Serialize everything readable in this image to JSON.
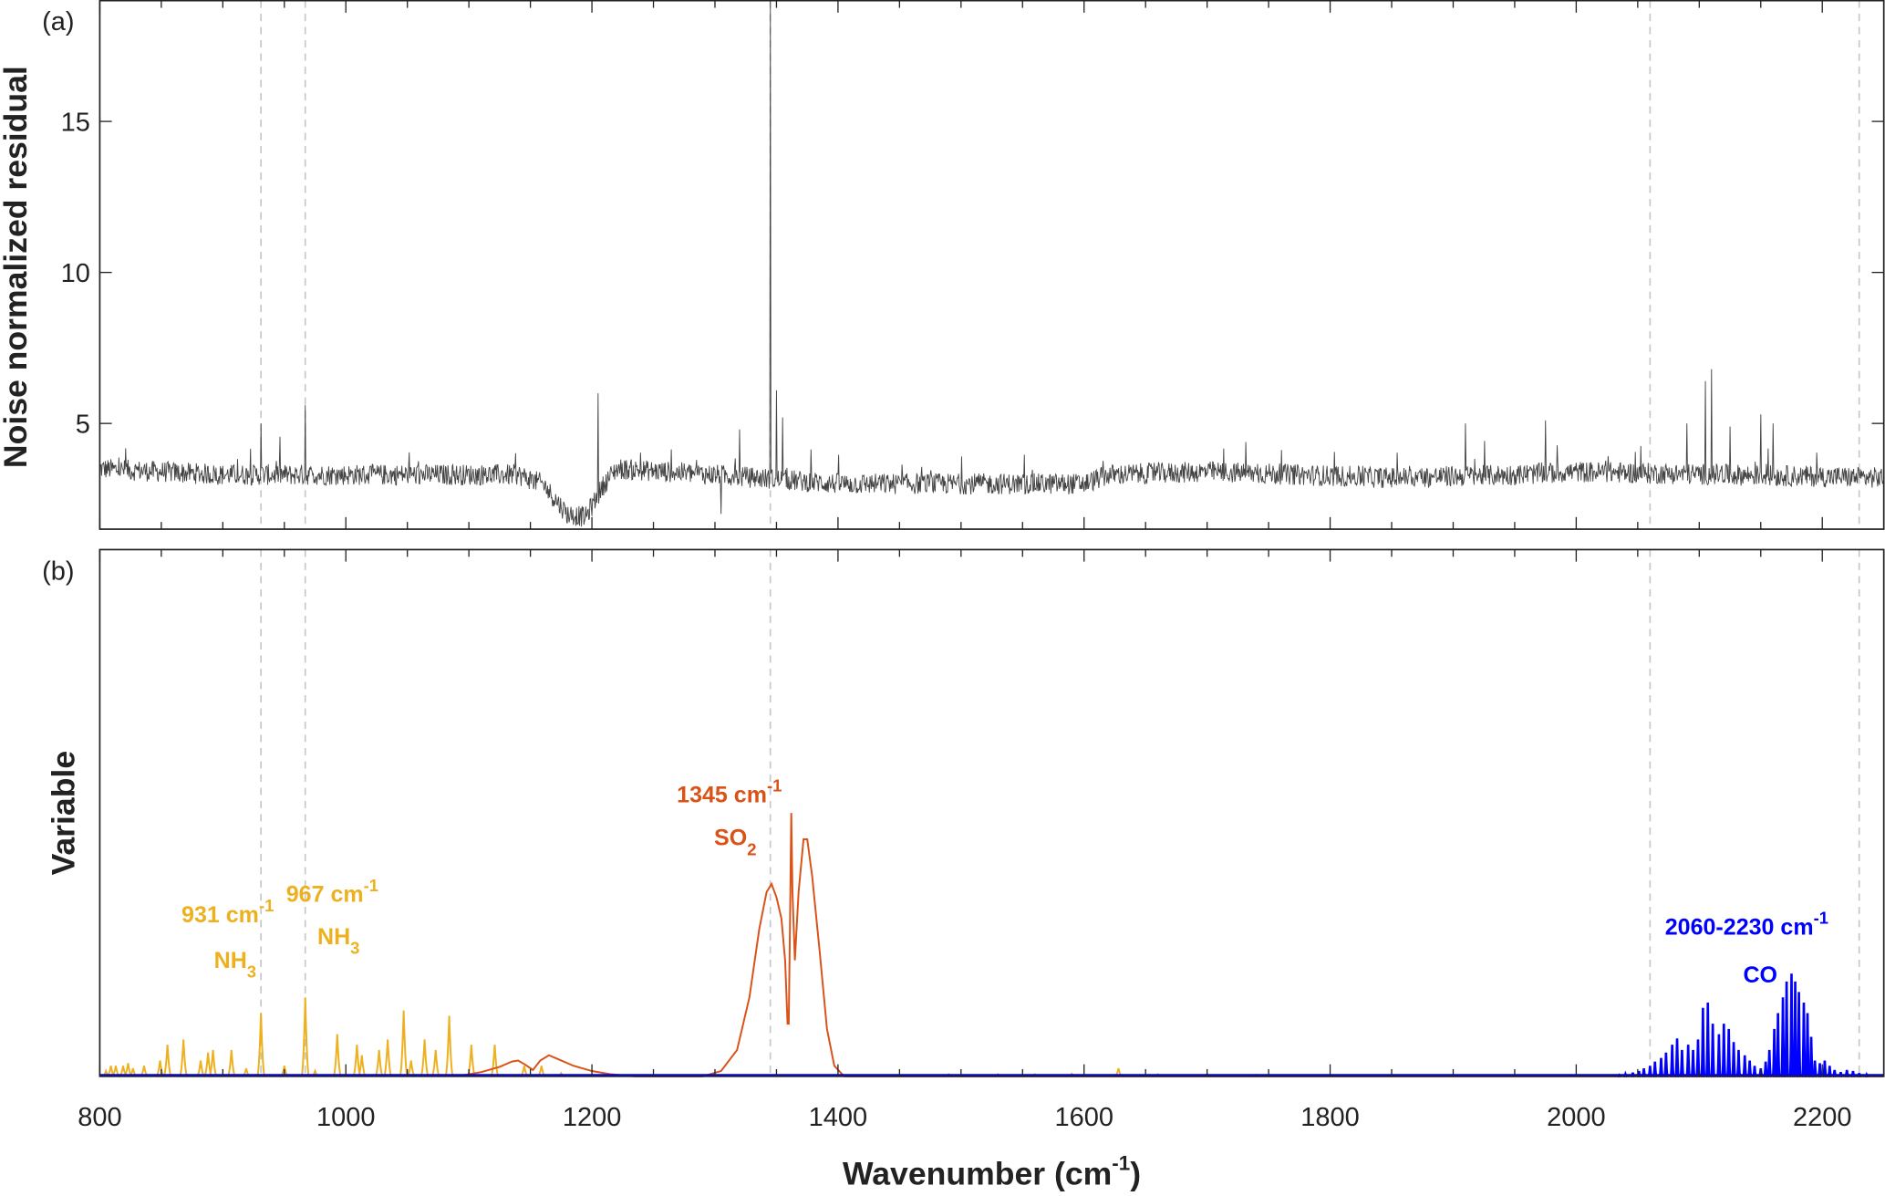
{
  "chart_data": [
    {
      "panel_label": "(a)",
      "type": "line",
      "xlabel_main": "Wavenumber (cm",
      "xlabel_sup": "-1",
      "xlabel_close": ")",
      "ylabel": "Noise normalized residual",
      "xlim": [
        800,
        2250
      ],
      "ylim": [
        1.5,
        19
      ],
      "xticks": [
        800,
        1000,
        1200,
        1400,
        1600,
        1800,
        2000,
        2200
      ],
      "yticks": [
        5,
        10,
        15
      ],
      "line_color": "#444444",
      "baseline": 3.3,
      "noise_amplitude": 0.35,
      "baseline_features": [
        [
          800,
          3.5
        ],
        [
          900,
          3.3
        ],
        [
          1140,
          3.3
        ],
        [
          1160,
          3.0
        ],
        [
          1180,
          2.0
        ],
        [
          1195,
          1.9
        ],
        [
          1210,
          3.0
        ],
        [
          1220,
          3.5
        ],
        [
          1300,
          3.3
        ],
        [
          1400,
          3.0
        ],
        [
          1600,
          3.0
        ],
        [
          1620,
          3.3
        ],
        [
          1700,
          3.4
        ],
        [
          1850,
          3.2
        ],
        [
          1950,
          3.3
        ],
        [
          2000,
          3.4
        ],
        [
          2250,
          3.2
        ]
      ],
      "spikes": [
        [
          931,
          5.0
        ],
        [
          967,
          5.6
        ],
        [
          1205,
          6.0
        ],
        [
          1305,
          2.0
        ],
        [
          1345,
          19.0
        ],
        [
          1350,
          6.1
        ],
        [
          1355,
          5.2
        ],
        [
          1320,
          4.8
        ],
        [
          1910,
          5.0
        ],
        [
          1975,
          5.1
        ],
        [
          2105,
          6.4
        ],
        [
          2110,
          6.8
        ],
        [
          2150,
          5.3
        ],
        [
          2160,
          5.0
        ],
        [
          2090,
          5.0
        ],
        [
          2125,
          4.9
        ]
      ],
      "reference_lines": [
        931,
        967,
        1345,
        2060,
        2230
      ]
    },
    {
      "panel_label": "(b)",
      "type": "line",
      "ylabel": "Variable",
      "xlim": [
        800,
        2250
      ],
      "ylim": [
        0,
        1
      ],
      "xticks": [
        800,
        1000,
        1200,
        1400,
        1600,
        1800,
        2000,
        2200
      ],
      "reference_lines": [
        931,
        967,
        1345,
        2060,
        2230
      ],
      "series": [
        {
          "name": "NH3",
          "color": "#EDB120",
          "kind": "lines",
          "lines": [
            [
              805,
              0.01
            ],
            [
              809,
              0.02
            ],
            [
              813,
              0.02
            ],
            [
              819,
              0.02
            ],
            [
              823,
              0.025
            ],
            [
              827,
              0.015
            ],
            [
              836,
              0.02
            ],
            [
              849,
              0.03
            ],
            [
              855,
              0.06
            ],
            [
              868,
              0.07
            ],
            [
              882,
              0.03
            ],
            [
              888,
              0.045
            ],
            [
              892,
              0.05
            ],
            [
              907,
              0.05
            ],
            [
              919,
              0.015
            ],
            [
              931,
              0.12
            ],
            [
              950,
              0.02
            ],
            [
              967,
              0.15
            ],
            [
              975,
              0.01
            ],
            [
              993,
              0.08
            ],
            [
              1009,
              0.06
            ],
            [
              1013,
              0.04
            ],
            [
              1027,
              0.05
            ],
            [
              1034,
              0.07
            ],
            [
              1047,
              0.125
            ],
            [
              1053,
              0.03
            ],
            [
              1064,
              0.07
            ],
            [
              1073,
              0.05
            ],
            [
              1084,
              0.115
            ],
            [
              1102,
              0.06
            ],
            [
              1121,
              0.06
            ],
            [
              1145,
              0.02
            ],
            [
              1159,
              0.02
            ],
            [
              1175,
              0.006
            ],
            [
              1490,
              0.004
            ],
            [
              1530,
              0.004
            ],
            [
              1560,
              0.004
            ],
            [
              1590,
              0.005
            ],
            [
              1628,
              0.015
            ],
            [
              1660,
              0.004
            ],
            [
              1700,
              0.005
            ],
            [
              1740,
              0.003
            ]
          ]
        },
        {
          "name": "SO2",
          "color": "#D95319",
          "kind": "curve",
          "points": [
            [
              1090,
              0
            ],
            [
              1110,
              0.008
            ],
            [
              1125,
              0.018
            ],
            [
              1135,
              0.028
            ],
            [
              1140,
              0.03
            ],
            [
              1146,
              0.022
            ],
            [
              1152,
              0.012
            ],
            [
              1158,
              0.03
            ],
            [
              1165,
              0.04
            ],
            [
              1172,
              0.033
            ],
            [
              1185,
              0.02
            ],
            [
              1200,
              0.01
            ],
            [
              1215,
              0.004
            ],
            [
              1235,
              0
            ],
            [
              1290,
              0
            ],
            [
              1305,
              0.01
            ],
            [
              1318,
              0.05
            ],
            [
              1328,
              0.15
            ],
            [
              1336,
              0.28
            ],
            [
              1342,
              0.35
            ],
            [
              1346,
              0.365
            ],
            [
              1350,
              0.34
            ],
            [
              1354,
              0.3
            ],
            [
              1357,
              0.22
            ],
            [
              1359,
              0.1
            ],
            [
              1360,
              0.1
            ],
            [
              1361,
              0.3
            ],
            [
              1362,
              0.5
            ],
            [
              1363,
              0.35
            ],
            [
              1365,
              0.22
            ],
            [
              1368,
              0.35
            ],
            [
              1372,
              0.45
            ],
            [
              1375,
              0.45
            ],
            [
              1379,
              0.38
            ],
            [
              1385,
              0.24
            ],
            [
              1391,
              0.09
            ],
            [
              1397,
              0.02
            ],
            [
              1405,
              0
            ],
            [
              2250,
              0
            ]
          ]
        },
        {
          "name": "CO",
          "color": "#0000FF",
          "kind": "lines",
          "lines": [
            [
              2035,
              0.002
            ],
            [
              2040,
              0.004
            ],
            [
              2046,
              0.007
            ],
            [
              2051,
              0.01
            ],
            [
              2055,
              0.015
            ],
            [
              2060,
              0.02
            ],
            [
              2064,
              0.028
            ],
            [
              2069,
              0.035
            ],
            [
              2073,
              0.045
            ],
            [
              2078,
              0.06
            ],
            [
              2082,
              0.072
            ],
            [
              2086,
              0.05
            ],
            [
              2091,
              0.06
            ],
            [
              2095,
              0.05
            ],
            [
              2099,
              0.07
            ],
            [
              2103,
              0.13
            ],
            [
              2107,
              0.14
            ],
            [
              2111,
              0.1
            ],
            [
              2116,
              0.08
            ],
            [
              2120,
              0.1
            ],
            [
              2124,
              0.09
            ],
            [
              2128,
              0.065
            ],
            [
              2132,
              0.05
            ],
            [
              2137,
              0.04
            ],
            [
              2141,
              0.03
            ],
            [
              2145,
              0.02
            ],
            [
              2150,
              0.015
            ],
            [
              2154,
              0.028
            ],
            [
              2157,
              0.05
            ],
            [
              2161,
              0.09
            ],
            [
              2164,
              0.12
            ],
            [
              2168,
              0.15
            ],
            [
              2171,
              0.18
            ],
            [
              2175,
              0.195
            ],
            [
              2178,
              0.18
            ],
            [
              2181,
              0.16
            ],
            [
              2185,
              0.14
            ],
            [
              2188,
              0.12
            ],
            [
              2191,
              0.075
            ],
            [
              2194,
              0.03
            ],
            [
              2198,
              0.025
            ],
            [
              2202,
              0.03
            ],
            [
              2206,
              0.02
            ],
            [
              2210,
              0.012
            ],
            [
              2215,
              0.008
            ],
            [
              2220,
              0.012
            ],
            [
              2225,
              0.01
            ],
            [
              2230,
              0.006
            ],
            [
              2236,
              0.003
            ]
          ]
        }
      ],
      "annotations": [
        {
          "series": "NH3",
          "wavenumber_text": "931 cm",
          "sup": "-1",
          "species": "NH",
          "sub": "3",
          "color": "#EDB120"
        },
        {
          "series": "NH3",
          "wavenumber_text": "967 cm",
          "sup": "-1",
          "species": "NH",
          "sub": "3",
          "color": "#EDB120"
        },
        {
          "series": "SO2",
          "wavenumber_text": "1345 cm",
          "sup": "-1",
          "species": "SO",
          "sub": "2",
          "color": "#D95319"
        },
        {
          "series": "CO",
          "wavenumber_text": "2060-2230 cm",
          "sup": "-1",
          "species": "CO",
          "sub": "",
          "color": "#0000FF"
        }
      ]
    }
  ]
}
